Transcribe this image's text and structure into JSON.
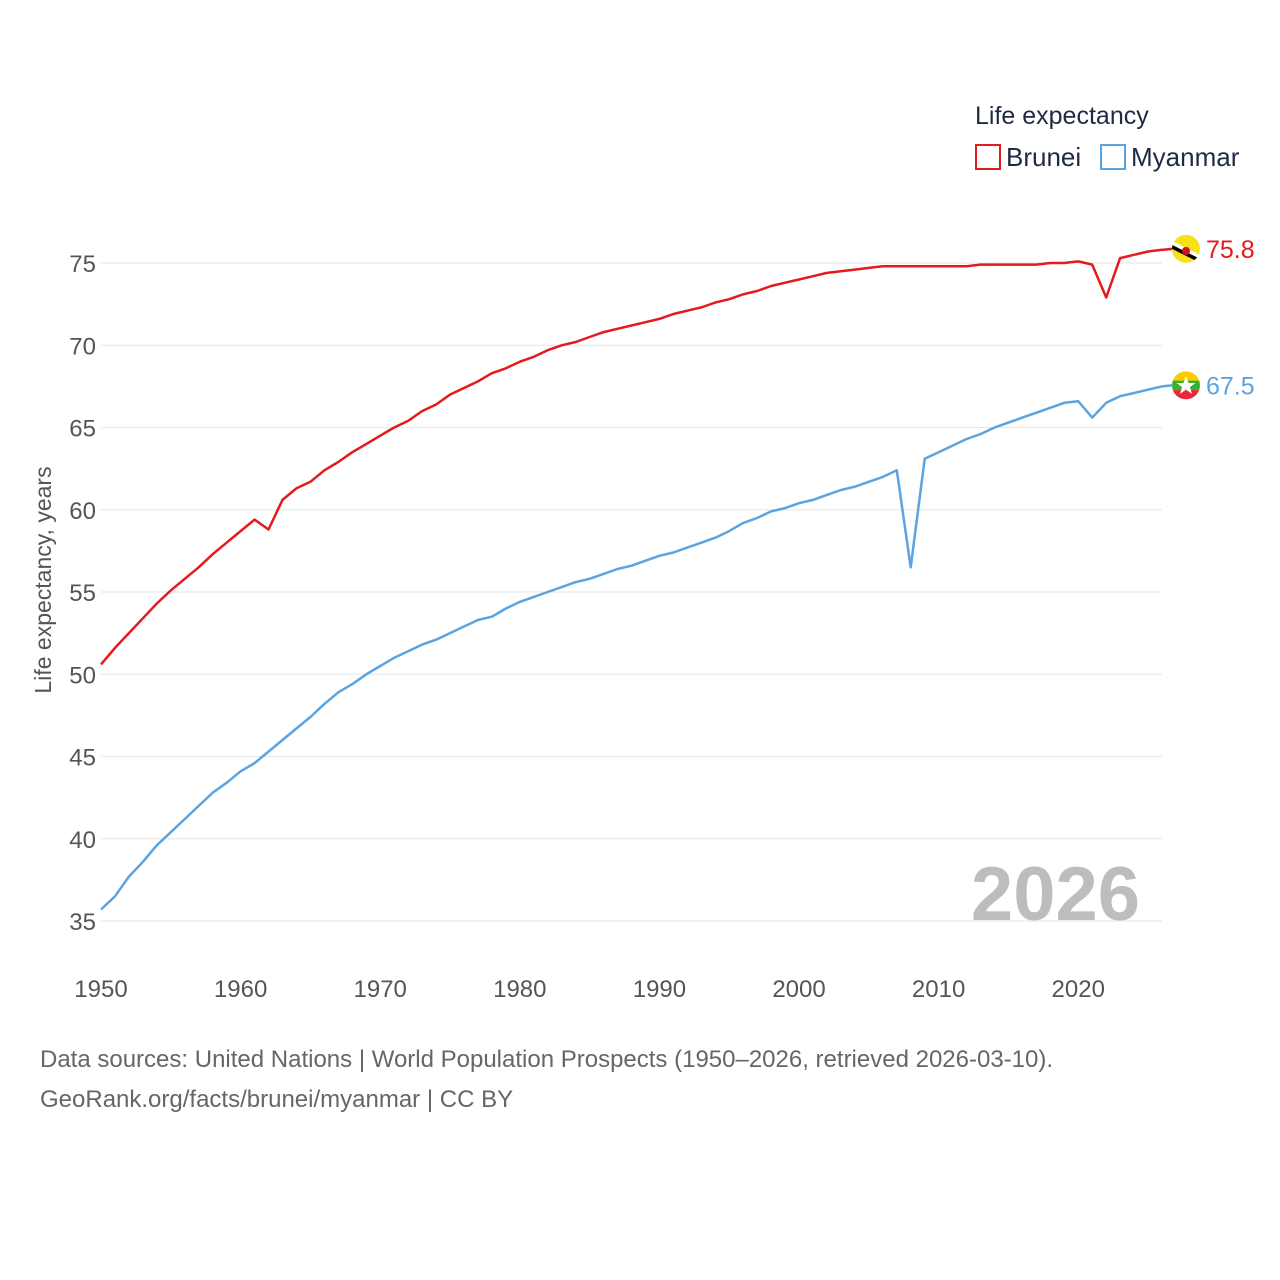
{
  "chart_data": {
    "type": "line",
    "legend_title": "Life expectancy",
    "ylabel": "Life expectancy, years",
    "xlabel": "",
    "xlim": [
      1950,
      2026
    ],
    "ylim": [
      33,
      77
    ],
    "x_ticks": [
      1950,
      1960,
      1970,
      1980,
      1990,
      2000,
      2010,
      2020
    ],
    "y_ticks": [
      35,
      40,
      45,
      50,
      55,
      60,
      65,
      70,
      75
    ],
    "current_year": "2026",
    "legend_position": "top-right",
    "x": [
      1950,
      1951,
      1952,
      1953,
      1954,
      1955,
      1956,
      1957,
      1958,
      1959,
      1960,
      1961,
      1962,
      1963,
      1964,
      1965,
      1966,
      1967,
      1968,
      1969,
      1970,
      1971,
      1972,
      1973,
      1974,
      1975,
      1976,
      1977,
      1978,
      1979,
      1980,
      1981,
      1982,
      1983,
      1984,
      1985,
      1986,
      1987,
      1988,
      1989,
      1990,
      1991,
      1992,
      1993,
      1994,
      1995,
      1996,
      1997,
      1998,
      1999,
      2000,
      2001,
      2002,
      2003,
      2004,
      2005,
      2006,
      2007,
      2008,
      2009,
      2010,
      2011,
      2012,
      2013,
      2014,
      2015,
      2016,
      2017,
      2018,
      2019,
      2020,
      2021,
      2022,
      2023,
      2024,
      2025,
      2026
    ],
    "series": [
      {
        "name": "Brunei",
        "color": "#e41a1c",
        "end_label": "75.8",
        "flag": "brunei-flag-icon",
        "values": [
          50.6,
          51.6,
          52.5,
          53.4,
          54.3,
          55.1,
          55.8,
          56.5,
          57.3,
          58.0,
          58.7,
          59.4,
          58.8,
          60.6,
          61.3,
          61.7,
          62.4,
          62.9,
          63.5,
          64.0,
          64.5,
          65.0,
          65.4,
          66.0,
          66.4,
          67.0,
          67.4,
          67.8,
          68.3,
          68.6,
          69.0,
          69.3,
          69.7,
          70.0,
          70.2,
          70.5,
          70.8,
          71.0,
          71.2,
          71.4,
          71.6,
          71.9,
          72.1,
          72.3,
          72.6,
          72.8,
          73.1,
          73.3,
          73.6,
          73.8,
          74.0,
          74.2,
          74.4,
          74.5,
          74.6,
          74.7,
          74.8,
          74.8,
          74.8,
          74.8,
          74.8,
          74.8,
          74.8,
          74.9,
          74.9,
          74.9,
          74.9,
          74.9,
          75.0,
          75.0,
          75.1,
          74.9,
          72.9,
          75.3,
          75.5,
          75.7,
          75.8
        ]
      },
      {
        "name": "Myanmar",
        "color": "#5aa4e2",
        "end_label": "67.5",
        "flag": "myanmar-flag-icon",
        "values": [
          35.7,
          36.5,
          37.7,
          38.6,
          39.6,
          40.4,
          41.2,
          42.0,
          42.8,
          43.4,
          44.1,
          44.6,
          45.3,
          46.0,
          46.7,
          47.4,
          48.2,
          48.9,
          49.4,
          50.0,
          50.5,
          51.0,
          51.4,
          51.8,
          52.1,
          52.5,
          52.9,
          53.3,
          53.5,
          54.0,
          54.4,
          54.7,
          55.0,
          55.3,
          55.6,
          55.8,
          56.1,
          56.4,
          56.6,
          56.9,
          57.2,
          57.4,
          57.7,
          58.0,
          58.3,
          58.7,
          59.2,
          59.5,
          59.9,
          60.1,
          60.4,
          60.6,
          60.9,
          61.2,
          61.4,
          61.7,
          62.0,
          62.4,
          56.5,
          63.1,
          63.5,
          63.9,
          64.3,
          64.6,
          65.0,
          65.3,
          65.6,
          65.9,
          66.2,
          66.5,
          66.6,
          65.6,
          66.5,
          66.9,
          67.1,
          67.3,
          67.5
        ]
      }
    ]
  },
  "source": {
    "line1": "Data sources: United Nations | World Population Prospects (1950–2026, retrieved 2026-03-10).",
    "line2": "GeoRank.org/facts/brunei/myanmar | CC BY"
  }
}
